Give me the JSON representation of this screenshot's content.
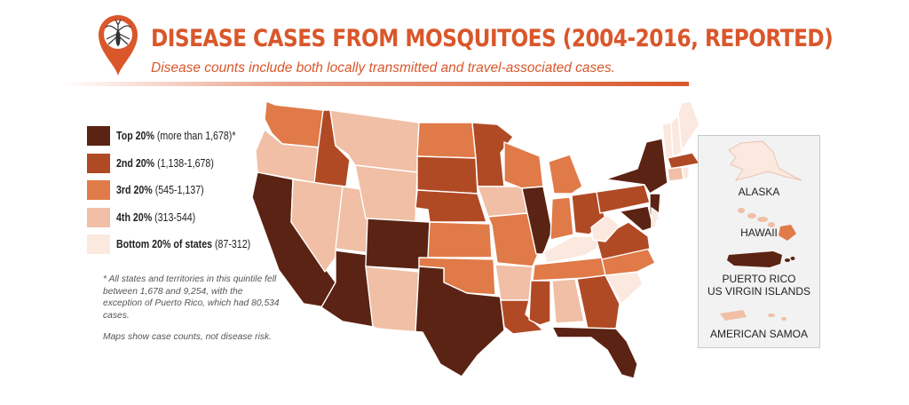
{
  "header": {
    "pin_icon": "mosquito-pin-icon",
    "title": "DISEASE CASES FROM MOSQUITOES (2004-2016, REPORTED)",
    "subtitle": "Disease counts include both locally transmitted and travel-associated cases."
  },
  "legend": {
    "items": [
      {
        "bold": "Top 20%",
        "rest": " (more than 1,678)*",
        "color": "#5b2313"
      },
      {
        "bold": "2nd 20%",
        "rest": " (1,138-1,678)",
        "color": "#b04a25"
      },
      {
        "bold": "3rd 20%",
        "rest": " (545-1,137)",
        "color": "#e07a48"
      },
      {
        "bold": "4th 20%",
        "rest": " (313-544)",
        "color": "#f0bfa5"
      },
      {
        "bold": "Bottom 20% of states",
        "rest": " (87-312)",
        "color": "#fbe8df"
      }
    ]
  },
  "footnote": "* All states and territories in this quintile fell between 1,678 and 9,254, with the exception of Puerto Rico, which had 80,534 cases.",
  "note": "Maps show case counts, not disease risk.",
  "territories": {
    "alaska": "ALASKA",
    "hawaii": "HAWAII",
    "puerto_rico": "PUERTO RICO",
    "virgin_islands": "US VIRGIN ISLANDS",
    "samoa": "AMERICAN SAMOA"
  },
  "colors": {
    "top": "#5b2313",
    "second": "#b04a25",
    "third": "#e07a48",
    "fourth": "#f0bfa5",
    "bottom": "#fbe8df",
    "accent": "#d9572b"
  }
}
